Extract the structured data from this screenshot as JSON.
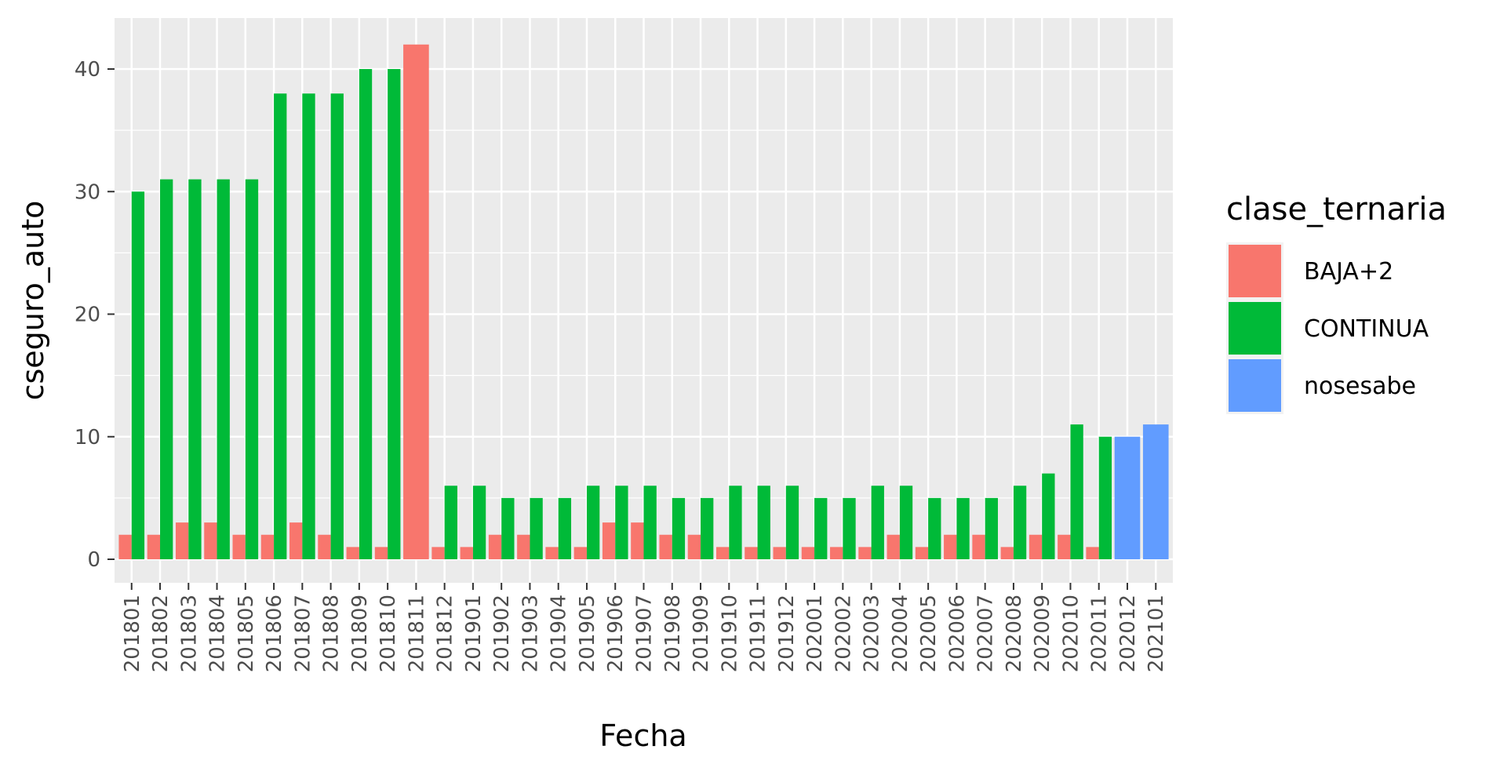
{
  "chart_data": {
    "type": "bar",
    "xlabel": "Fecha",
    "ylabel": "cseguro_auto",
    "ylim": [
      0,
      44
    ],
    "yticks": [
      0,
      10,
      20,
      30,
      40
    ],
    "grid": true,
    "legend_position": "right",
    "legend_title": "clase_ternaria",
    "categories": [
      "201801",
      "201802",
      "201803",
      "201804",
      "201805",
      "201806",
      "201807",
      "201808",
      "201809",
      "201810",
      "201811",
      "201812",
      "201901",
      "201902",
      "201903",
      "201904",
      "201905",
      "201906",
      "201907",
      "201908",
      "201909",
      "201910",
      "201911",
      "201912",
      "202001",
      "202002",
      "202003",
      "202004",
      "202005",
      "202006",
      "202007",
      "202008",
      "202009",
      "202010",
      "202011",
      "202012",
      "202101"
    ],
    "series": [
      {
        "name": "BAJA+2",
        "color": "#F8766D",
        "values": [
          2,
          2,
          3,
          3,
          2,
          2,
          3,
          2,
          1,
          1,
          42,
          1,
          1,
          2,
          2,
          1,
          1,
          3,
          3,
          2,
          2,
          1,
          1,
          1,
          1,
          1,
          1,
          2,
          1,
          2,
          2,
          1,
          2,
          2,
          1,
          null,
          null
        ]
      },
      {
        "name": "CONTINUA",
        "color": "#00BA38",
        "values": [
          30,
          31,
          31,
          31,
          31,
          38,
          38,
          38,
          40,
          40,
          null,
          6,
          6,
          5,
          5,
          5,
          6,
          6,
          6,
          5,
          5,
          6,
          6,
          6,
          5,
          5,
          6,
          6,
          5,
          5,
          5,
          6,
          7,
          11,
          10,
          null,
          null
        ]
      },
      {
        "name": "nosesabe",
        "color": "#619CFF",
        "values": [
          null,
          null,
          null,
          null,
          null,
          null,
          null,
          null,
          null,
          null,
          null,
          null,
          null,
          null,
          null,
          null,
          null,
          null,
          null,
          null,
          null,
          null,
          null,
          null,
          null,
          null,
          null,
          null,
          null,
          null,
          null,
          null,
          null,
          null,
          null,
          10,
          11
        ]
      }
    ]
  }
}
